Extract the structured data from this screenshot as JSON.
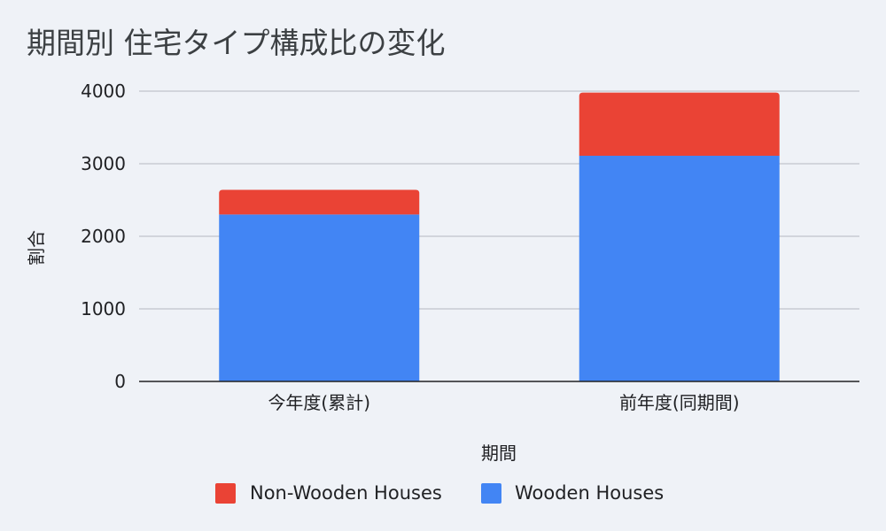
{
  "chart_data": {
    "type": "bar",
    "stacked": true,
    "title": "期間別 住宅タイプ構成比の変化",
    "xlabel": "期間",
    "ylabel": "割合",
    "categories": [
      "今年度(累計)",
      "前年度(同期間)"
    ],
    "series": [
      {
        "name": "Wooden Houses",
        "values": [
          2300,
          3110
        ],
        "color": "#4285f4"
      },
      {
        "name": "Non-Wooden Houses",
        "values": [
          340,
          870
        ],
        "color": "#ea4335"
      }
    ],
    "ylim": [
      0,
      4000
    ],
    "yticks": [
      0,
      1000,
      2000,
      3000,
      4000
    ],
    "grid": true,
    "legend_position": "bottom",
    "legend_order": [
      "Non-Wooden Houses",
      "Wooden Houses"
    ],
    "gridline_color": "#c0c4cb",
    "axis_color": "#202124",
    "background_color": "#eff2f7"
  }
}
